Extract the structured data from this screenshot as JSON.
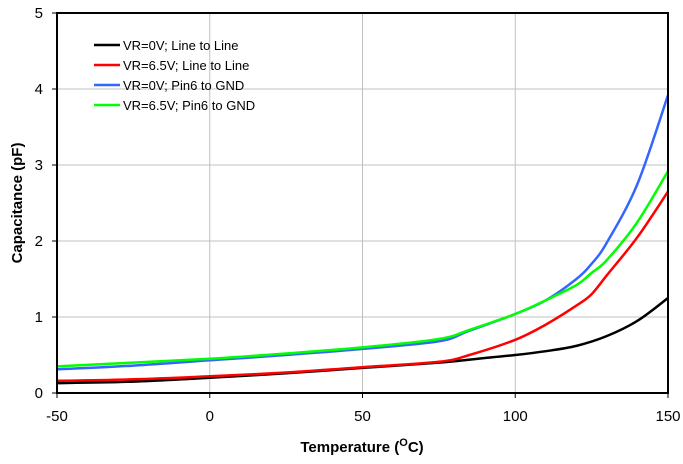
{
  "chart_data": {
    "type": "line",
    "title": "",
    "xlabel": {
      "pre": "Temperature (",
      "sup": "O",
      "post": "C)"
    },
    "ylabel": "Capacitance (pF)",
    "xlim": [
      -50,
      150
    ],
    "ylim": [
      0,
      5
    ],
    "xticks": [
      -50,
      0,
      50,
      100,
      150
    ],
    "yticks": [
      0,
      1,
      2,
      3,
      4,
      5
    ],
    "grid": true,
    "legend_position": "top-left",
    "series": [
      {
        "name": "VR=0V; Line to Line",
        "color": "#000000",
        "points": [
          [
            -50,
            0.13
          ],
          [
            -25,
            0.15
          ],
          [
            0,
            0.2
          ],
          [
            25,
            0.26
          ],
          [
            50,
            0.33
          ],
          [
            75,
            0.4
          ],
          [
            90,
            0.46
          ],
          [
            100,
            0.5
          ],
          [
            110,
            0.55
          ],
          [
            120,
            0.62
          ],
          [
            130,
            0.75
          ],
          [
            140,
            0.95
          ],
          [
            150,
            1.25
          ]
        ]
      },
      {
        "name": "VR=6.5V; Line to Line",
        "color": "#ff0000",
        "points": [
          [
            -50,
            0.16
          ],
          [
            -25,
            0.18
          ],
          [
            0,
            0.22
          ],
          [
            25,
            0.27
          ],
          [
            50,
            0.34
          ],
          [
            75,
            0.41
          ],
          [
            85,
            0.5
          ],
          [
            100,
            0.7
          ],
          [
            110,
            0.9
          ],
          [
            120,
            1.15
          ],
          [
            125,
            1.3
          ],
          [
            130,
            1.55
          ],
          [
            140,
            2.05
          ],
          [
            150,
            2.65
          ]
        ]
      },
      {
        "name": "VR=0V; Pin6 to GND",
        "color": "#3366ff",
        "points": [
          [
            -50,
            0.31
          ],
          [
            -25,
            0.36
          ],
          [
            0,
            0.43
          ],
          [
            25,
            0.5
          ],
          [
            50,
            0.58
          ],
          [
            75,
            0.68
          ],
          [
            85,
            0.82
          ],
          [
            100,
            1.04
          ],
          [
            110,
            1.22
          ],
          [
            120,
            1.5
          ],
          [
            125,
            1.7
          ],
          [
            130,
            1.98
          ],
          [
            140,
            2.75
          ],
          [
            150,
            3.92
          ]
        ]
      },
      {
        "name": "VR=6.5V; Pin6 to GND",
        "color": "#00ff00",
        "points": [
          [
            -50,
            0.35
          ],
          [
            -25,
            0.4
          ],
          [
            0,
            0.45
          ],
          [
            25,
            0.52
          ],
          [
            50,
            0.6
          ],
          [
            75,
            0.71
          ],
          [
            85,
            0.83
          ],
          [
            100,
            1.04
          ],
          [
            110,
            1.22
          ],
          [
            120,
            1.42
          ],
          [
            125,
            1.58
          ],
          [
            130,
            1.75
          ],
          [
            140,
            2.25
          ],
          [
            150,
            2.92
          ]
        ]
      }
    ]
  }
}
